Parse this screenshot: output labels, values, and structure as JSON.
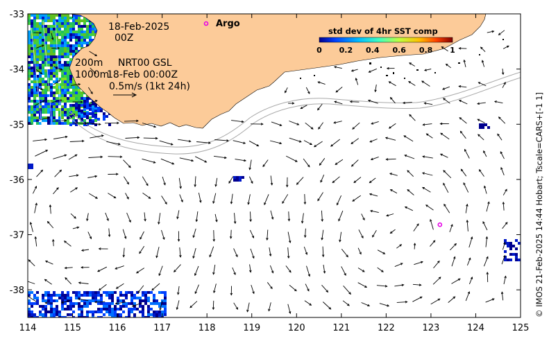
{
  "map": {
    "region": "SE Indian Ocean off SW Western Australia",
    "lon_range": [
      114,
      125
    ],
    "lat_range": [
      -38.5,
      -33
    ],
    "x_ticks": [
      "114",
      "115",
      "116",
      "117",
      "118",
      "119",
      "120",
      "121",
      "122",
      "123",
      "124",
      "125"
    ],
    "y_ticks": [
      "-33",
      "-34",
      "-35",
      "-36",
      "-37",
      "-38"
    ],
    "land_color": "#fccb99",
    "ocean_color": "#ffffff",
    "isobath_color": "#a8a8a8"
  },
  "annotations": {
    "date": "18-Feb-2025",
    "time": "00Z",
    "depth1": "200m",
    "depth2": "1000m",
    "product": "NRT00 GSL",
    "product_time": "18-Feb 00:00Z",
    "scale_label": "0.5m/s (1kt 24h)",
    "argo_label": "Argo"
  },
  "colorbar": {
    "title": "std dev of 4hr SST comp",
    "ticks": [
      "0",
      "0.2",
      "0.4",
      "0.6",
      "0.8",
      "1"
    ],
    "stops": [
      "#00008f",
      "#0040ff",
      "#00c0ff",
      "#40ffbf",
      "#bfff40",
      "#ffc000",
      "#ff4000",
      "#800000"
    ]
  },
  "argo_float": {
    "lon": 123.2,
    "lat": -36.82,
    "color": "#e600e6"
  },
  "credit": "© IMOS 21-Feb-2025 14:44 Hobart; Tscale=CARS+[-1 1]"
}
